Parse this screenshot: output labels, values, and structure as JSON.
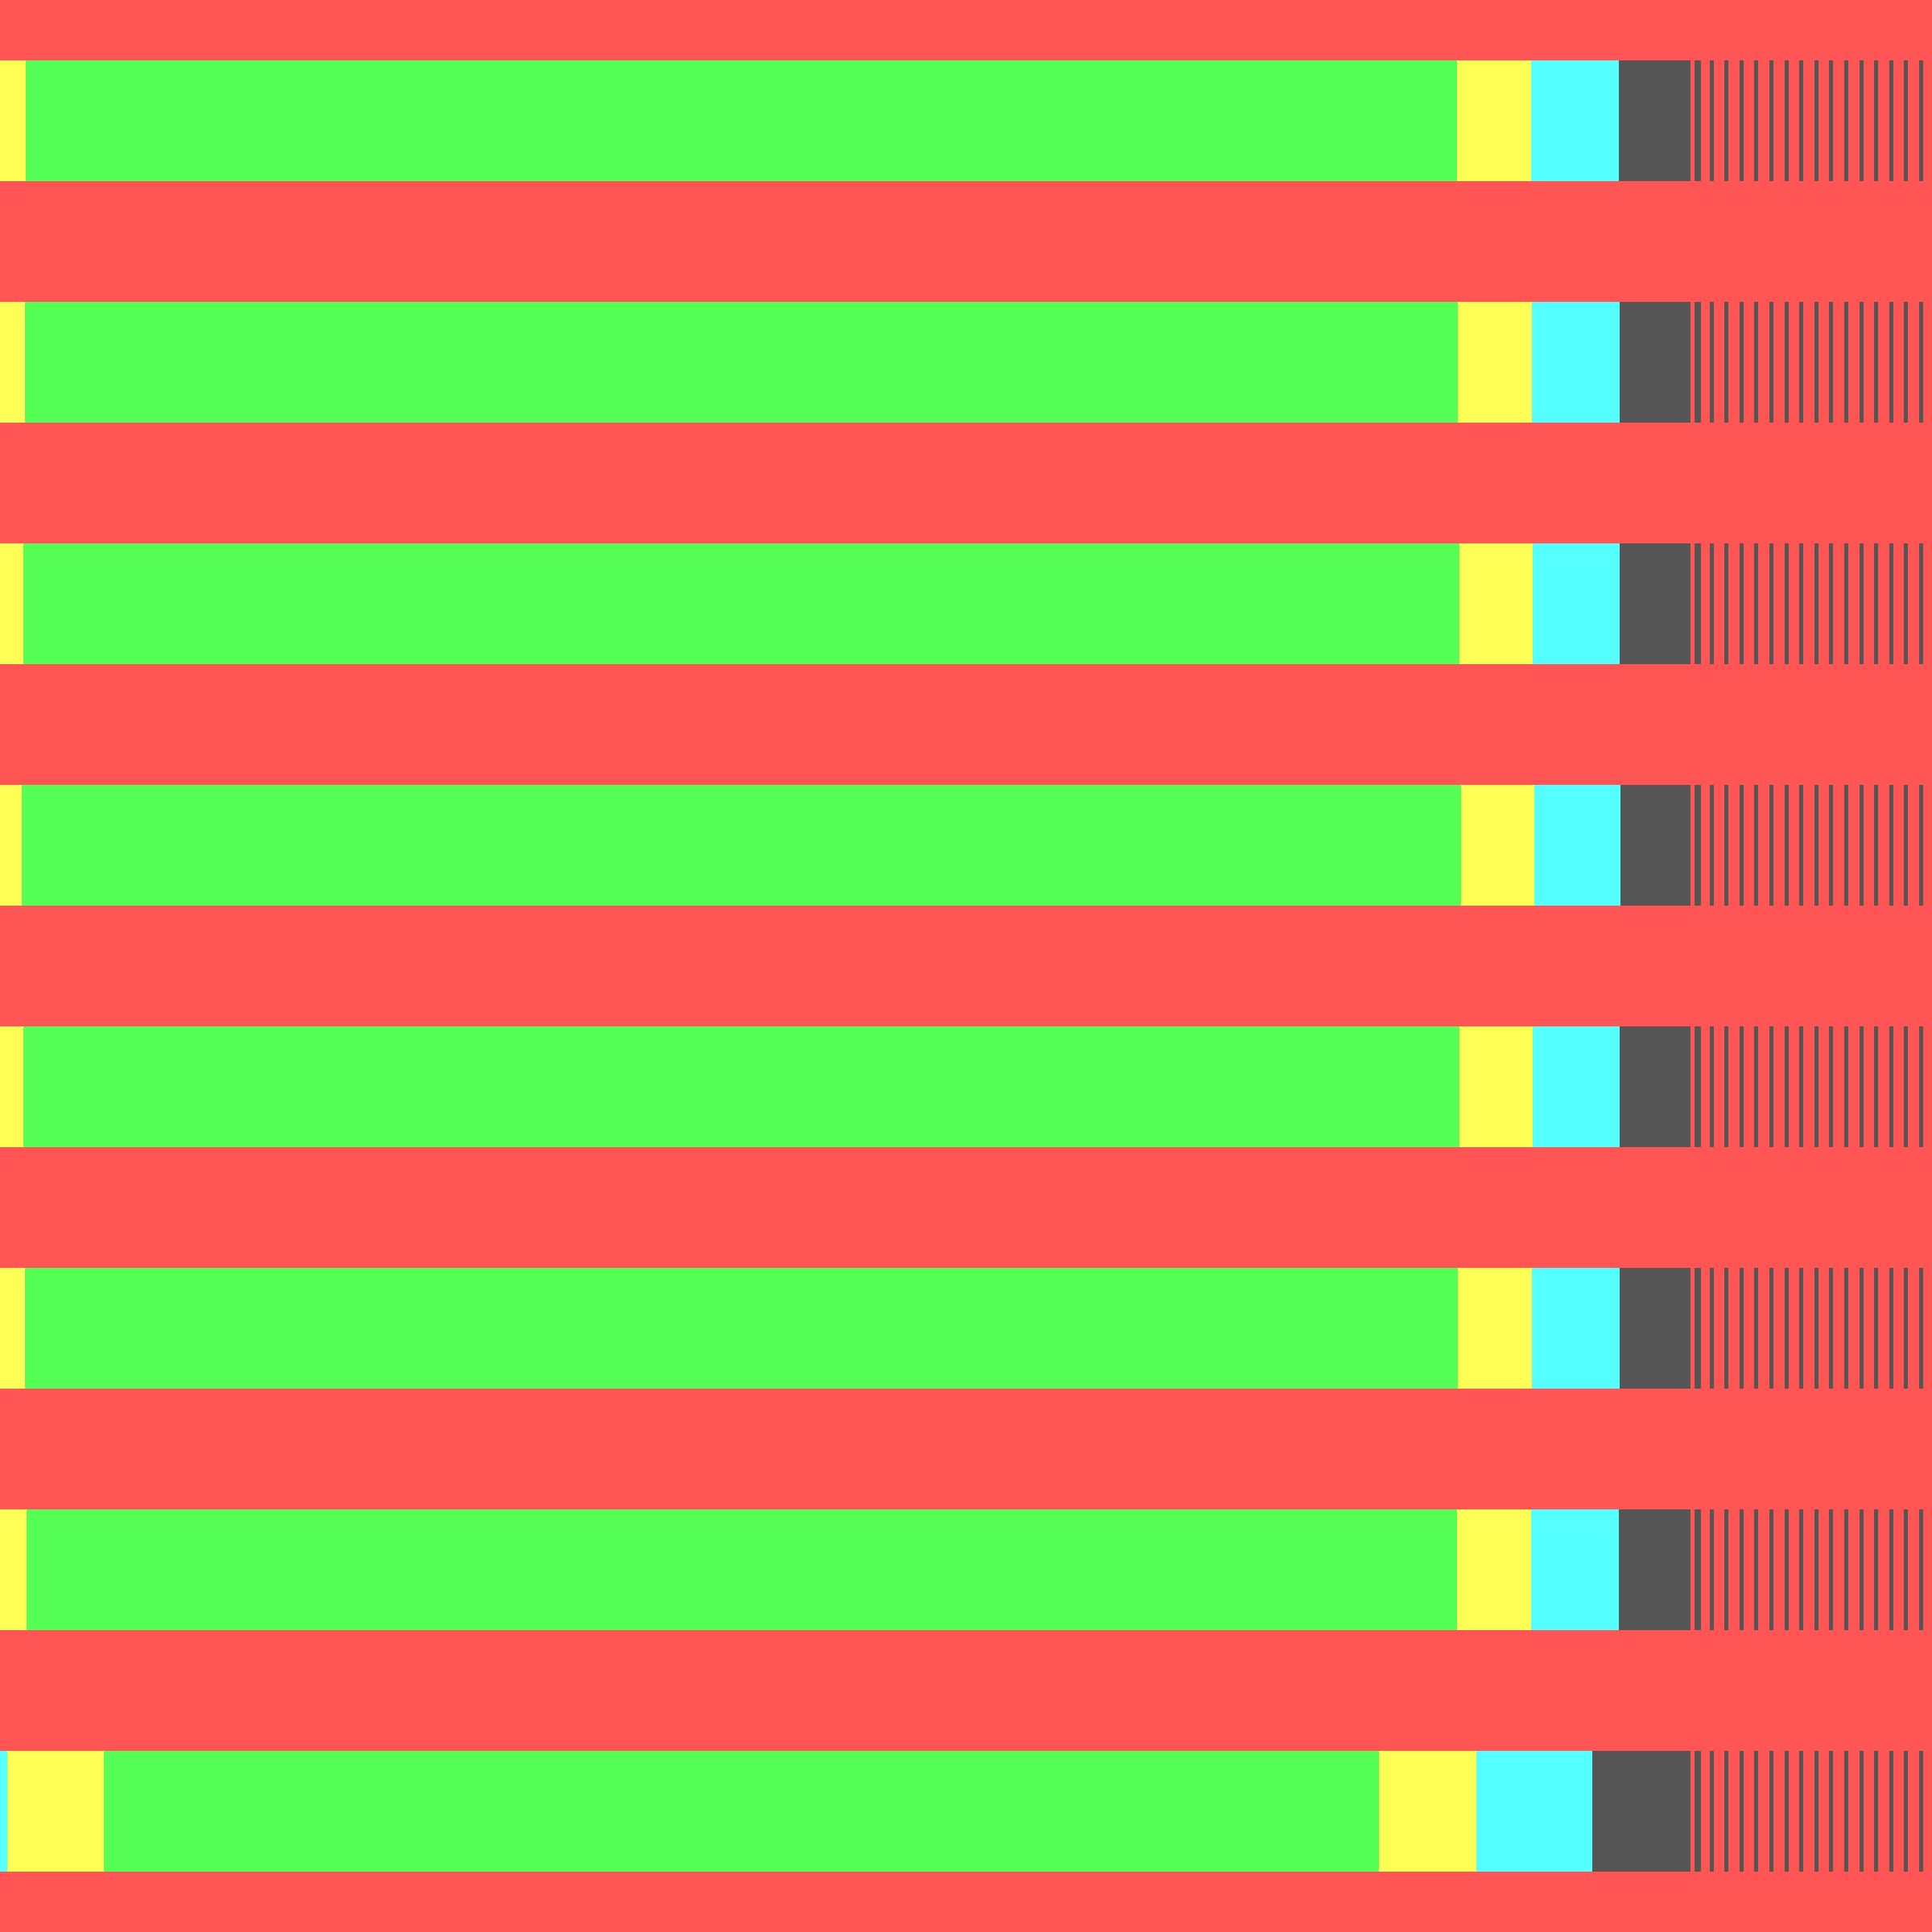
{
  "colors": {
    "background": "#ff5555",
    "green": "#55ff55",
    "yellow": "#ffff55",
    "cyan": "#55ffff",
    "dark": "#555555"
  },
  "bands": [
    {
      "segments": [
        {
          "color": "yellow"
        },
        {
          "color": "green"
        },
        {
          "color": "yellow"
        },
        {
          "color": "cyan"
        },
        {
          "color": "dark"
        }
      ]
    },
    {
      "segments": [
        {
          "color": "yellow"
        },
        {
          "color": "green"
        },
        {
          "color": "yellow"
        },
        {
          "color": "cyan"
        },
        {
          "color": "dark"
        }
      ]
    },
    {
      "segments": [
        {
          "color": "yellow"
        },
        {
          "color": "green"
        },
        {
          "color": "yellow"
        },
        {
          "color": "cyan"
        },
        {
          "color": "dark"
        }
      ]
    },
    {
      "segments": [
        {
          "color": "yellow"
        },
        {
          "color": "green"
        },
        {
          "color": "yellow"
        },
        {
          "color": "cyan"
        },
        {
          "color": "dark"
        }
      ]
    },
    {
      "segments": [
        {
          "color": "yellow"
        },
        {
          "color": "green"
        },
        {
          "color": "yellow"
        },
        {
          "color": "cyan"
        },
        {
          "color": "dark"
        }
      ]
    },
    {
      "segments": [
        {
          "color": "yellow"
        },
        {
          "color": "green"
        },
        {
          "color": "yellow"
        },
        {
          "color": "cyan"
        },
        {
          "color": "dark"
        }
      ]
    },
    {
      "segments": [
        {
          "color": "yellow"
        },
        {
          "color": "green"
        },
        {
          "color": "yellow"
        },
        {
          "color": "cyan"
        },
        {
          "color": "dark"
        }
      ]
    },
    {
      "segments": [
        {
          "color": "cyan"
        },
        {
          "color": "yellow"
        },
        {
          "color": "green"
        },
        {
          "color": "yellow"
        },
        {
          "color": "cyan"
        },
        {
          "color": "dark"
        }
      ]
    }
  ]
}
